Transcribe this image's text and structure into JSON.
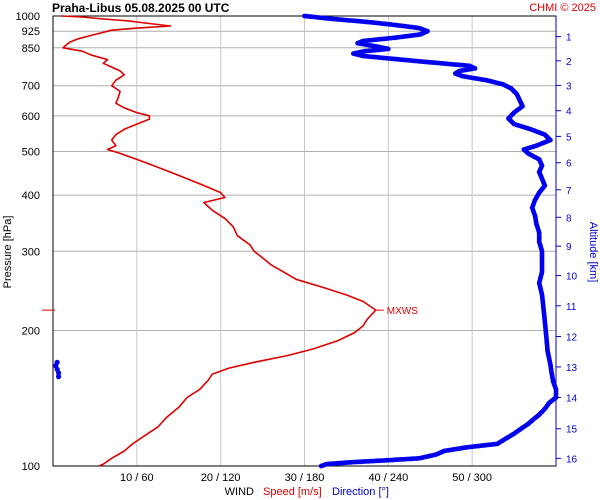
{
  "chart_data": {
    "type": "line",
    "header": {
      "station_time": "Praha-Libus    05.08.2025 00 UTC",
      "credit": "CHMI © 2025"
    },
    "y_axis": {
      "label": "Pressure [hPa]",
      "scale": "log",
      "range": [
        1000,
        100
      ],
      "ticks": [
        100,
        200,
        300,
        400,
        500,
        600,
        700,
        850,
        925,
        1000
      ]
    },
    "x_axis": {
      "label_prefix": "WIND",
      "speed_label": "Speed [m/s]",
      "direction_label": "Direction [°]",
      "speed_range": [
        0,
        60
      ],
      "direction_range": [
        0,
        360
      ],
      "ticks": [
        "10 / 60",
        "20 / 120",
        "30 / 180",
        "40 / 240",
        "50 / 300"
      ],
      "tick_speeds": [
        10,
        20,
        30,
        40,
        50
      ]
    },
    "right_axis": {
      "label": "Altitude [km]",
      "ticks": [
        {
          "km": 1,
          "p": 900
        },
        {
          "km": 2,
          "p": 795
        },
        {
          "km": 3,
          "p": 701
        },
        {
          "km": 4,
          "p": 616
        },
        {
          "km": 5,
          "p": 540
        },
        {
          "km": 6,
          "p": 472
        },
        {
          "km": 7,
          "p": 411
        },
        {
          "km": 8,
          "p": 357
        },
        {
          "km": 9,
          "p": 308
        },
        {
          "km": 10,
          "p": 265
        },
        {
          "km": 11,
          "p": 227
        },
        {
          "km": 12,
          "p": 194
        },
        {
          "km": 13,
          "p": 166
        },
        {
          "km": 14,
          "p": 142
        },
        {
          "km": 15,
          "p": 121
        },
        {
          "km": 16,
          "p": 104
        }
      ]
    },
    "annotation": {
      "label": "MXWS",
      "pressure": 222,
      "speed": 38.5
    },
    "series": [
      {
        "name": "Speed [m/s]",
        "color": "#dd0000",
        "points": [
          [
            1000,
            1.0
          ],
          [
            995,
            3.5
          ],
          [
            985,
            6.0
          ],
          [
            975,
            9.0
          ],
          [
            965,
            11.0
          ],
          [
            950,
            14.0
          ],
          [
            940,
            10.0
          ],
          [
            930,
            7.0
          ],
          [
            920,
            6.0
          ],
          [
            905,
            4.5
          ],
          [
            890,
            3.0
          ],
          [
            875,
            2.0
          ],
          [
            860,
            1.5
          ],
          [
            850,
            1.2
          ],
          [
            835,
            3.5
          ],
          [
            820,
            4.5
          ],
          [
            800,
            6.5
          ],
          [
            785,
            6.0
          ],
          [
            770,
            7.0
          ],
          [
            755,
            8.0
          ],
          [
            740,
            8.5
          ],
          [
            720,
            7.5
          ],
          [
            700,
            7.0
          ],
          [
            680,
            8.0
          ],
          [
            660,
            7.8
          ],
          [
            640,
            7.5
          ],
          [
            625,
            8.5
          ],
          [
            610,
            10.0
          ],
          [
            600,
            11.5
          ],
          [
            590,
            11.5
          ],
          [
            575,
            10.0
          ],
          [
            560,
            8.5
          ],
          [
            545,
            7.5
          ],
          [
            530,
            7.0
          ],
          [
            515,
            7.5
          ],
          [
            505,
            6.5
          ],
          [
            495,
            8.0
          ],
          [
            480,
            10.0
          ],
          [
            465,
            12.0
          ],
          [
            450,
            14.0
          ],
          [
            435,
            16.0
          ],
          [
            420,
            18.0
          ],
          [
            405,
            20.0
          ],
          [
            395,
            20.5
          ],
          [
            385,
            18.0
          ],
          [
            370,
            19.0
          ],
          [
            355,
            20.5
          ],
          [
            340,
            21.5
          ],
          [
            325,
            22.0
          ],
          [
            310,
            23.5
          ],
          [
            300,
            24.0
          ],
          [
            290,
            25.0
          ],
          [
            280,
            26.0
          ],
          [
            270,
            27.5
          ],
          [
            260,
            29.0
          ],
          [
            250,
            32.0
          ],
          [
            240,
            35.0
          ],
          [
            232,
            37.0
          ],
          [
            222,
            38.5
          ],
          [
            212,
            37.5
          ],
          [
            205,
            37.0
          ],
          [
            198,
            36.0
          ],
          [
            190,
            34.0
          ],
          [
            182,
            31.0
          ],
          [
            176,
            28.0
          ],
          [
            170,
            24.0
          ],
          [
            165,
            21.0
          ],
          [
            160,
            19.0
          ],
          [
            155,
            18.5
          ],
          [
            148,
            17.5
          ],
          [
            142,
            16.0
          ],
          [
            135,
            15.0
          ],
          [
            128,
            13.5
          ],
          [
            122,
            12.5
          ],
          [
            117,
            11.0
          ],
          [
            112,
            9.5
          ],
          [
            108,
            8.5
          ],
          [
            104,
            7.0
          ],
          [
            101,
            6.0
          ],
          [
            100,
            5.5
          ]
        ]
      },
      {
        "name": "Direction [°]",
        "color": "#0000ee",
        "points": [
          [
            1000,
            180
          ],
          [
            985,
            200
          ],
          [
            970,
            225
          ],
          [
            955,
            245
          ],
          [
            940,
            262
          ],
          [
            925,
            268
          ],
          [
            910,
            263
          ],
          [
            895,
            245
          ],
          [
            880,
            222
          ],
          [
            870,
            218
          ],
          [
            855,
            232
          ],
          [
            845,
            240
          ],
          [
            835,
            223
          ],
          [
            825,
            215
          ],
          [
            815,
            222
          ],
          [
            805,
            240
          ],
          [
            795,
            258
          ],
          [
            785,
            278
          ],
          [
            775,
            298
          ],
          [
            765,
            302
          ],
          [
            755,
            291
          ],
          [
            745,
            288
          ],
          [
            735,
            293
          ],
          [
            720,
            310
          ],
          [
            705,
            322
          ],
          [
            690,
            328
          ],
          [
            670,
            332
          ],
          [
            650,
            334
          ],
          [
            630,
            336
          ],
          [
            610,
            330
          ],
          [
            592,
            326
          ],
          [
            575,
            330
          ],
          [
            560,
            342
          ],
          [
            545,
            352
          ],
          [
            530,
            356
          ],
          [
            515,
            346
          ],
          [
            505,
            337
          ],
          [
            495,
            340
          ],
          [
            480,
            348
          ],
          [
            465,
            350
          ],
          [
            450,
            348
          ],
          [
            435,
            350
          ],
          [
            420,
            352
          ],
          [
            405,
            348
          ],
          [
            390,
            345
          ],
          [
            375,
            343
          ],
          [
            360,
            345
          ],
          [
            345,
            346
          ],
          [
            330,
            348
          ],
          [
            315,
            348
          ],
          [
            300,
            350
          ],
          [
            285,
            350
          ],
          [
            270,
            350
          ],
          [
            255,
            348
          ],
          [
            240,
            350
          ],
          [
            225,
            351
          ],
          [
            210,
            352
          ],
          [
            195,
            353
          ],
          [
            180,
            354
          ],
          [
            168,
            356
          ],
          [
            160,
            357
          ],
          [
            154,
            358
          ],
          [
            148,
            360
          ],
          [
            142,
            360
          ],
          [
            138,
            355
          ],
          [
            134,
            352
          ],
          [
            130,
            348
          ],
          [
            127,
            344
          ],
          [
            124,
            340
          ],
          [
            121,
            335
          ],
          [
            118,
            330
          ],
          [
            115,
            324
          ],
          [
            112,
            318
          ],
          [
            110,
            296
          ],
          [
            108,
            280
          ],
          [
            106,
            274
          ],
          [
            104,
            262
          ],
          [
            103,
            240
          ],
          [
            102,
            215
          ],
          [
            101,
            196
          ],
          [
            100,
            192
          ]
        ]
      }
    ],
    "inset_direction_points": [
      [
        158,
        4
      ],
      [
        161,
        4
      ],
      [
        164,
        3
      ],
      [
        167,
        2
      ],
      [
        170,
        3
      ]
    ]
  }
}
